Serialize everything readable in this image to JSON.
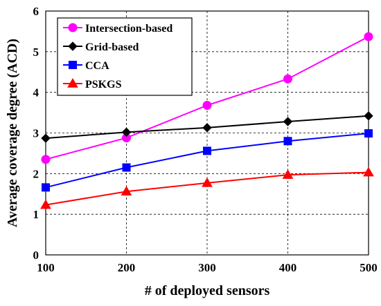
{
  "chart_data": {
    "type": "line",
    "title": "",
    "xlabel": "# of deployed sensors",
    "ylabel": "Average coverage degree (ACD)",
    "x": [
      100,
      200,
      300,
      400,
      500
    ],
    "xlim": [
      100,
      500
    ],
    "ylim": [
      0,
      6
    ],
    "xticks": [
      "100",
      "200",
      "300",
      "400",
      "500"
    ],
    "yticks": [
      "0",
      "1",
      "2",
      "3",
      "4",
      "5",
      "6"
    ],
    "grid": true,
    "legend_position": "top-left",
    "series": [
      {
        "name": "Intersection-based",
        "color": "#ff00ff",
        "marker": "circle",
        "values": [
          2.35,
          2.88,
          3.68,
          4.33,
          5.37
        ]
      },
      {
        "name": "Grid-based",
        "color": "#000000",
        "marker": "diamond",
        "values": [
          2.87,
          3.02,
          3.13,
          3.28,
          3.42
        ]
      },
      {
        "name": "CCA",
        "color": "#0000ff",
        "marker": "square",
        "values": [
          1.66,
          2.15,
          2.56,
          2.8,
          2.99
        ]
      },
      {
        "name": "PSKGS",
        "color": "#ff0000",
        "marker": "triangle",
        "values": [
          1.23,
          1.56,
          1.77,
          1.97,
          2.03
        ]
      }
    ]
  }
}
